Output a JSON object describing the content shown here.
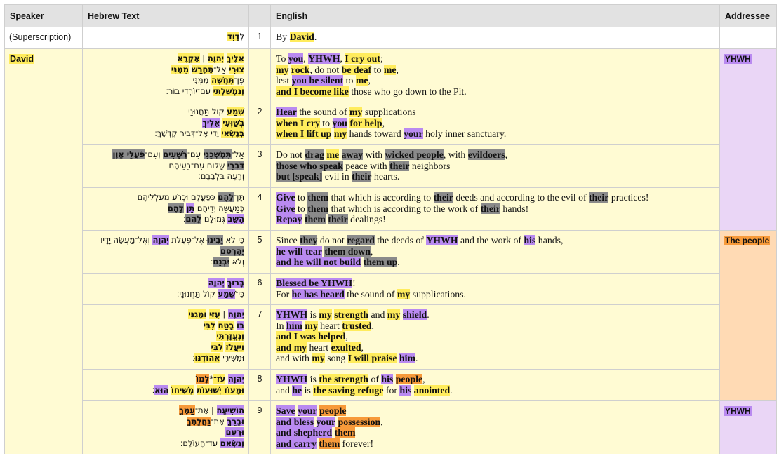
{
  "headers": {
    "speaker": "Speaker",
    "hebrew": "Hebrew Text",
    "number": "",
    "english": "English",
    "addressee": "Addressee"
  },
  "colors": {
    "yellow": "#ffec5c",
    "purple": "#b98af0",
    "gray": "#8a8a8a",
    "orange": "#f79a3a",
    "cream_bg": "#fffbd3",
    "lavender_bg": "#ead6f6",
    "peach_bg": "#ffdab4"
  },
  "speakers": {
    "superscription": "(Superscription)",
    "david": "David"
  },
  "addressees": {
    "yhwh_1": "YHWH",
    "people": "The people",
    "yhwh_2": "YHWH"
  },
  "rows": [
    {
      "num": "1",
      "hebrew": [
        [
          [
            "לְ",
            ""
          ],
          [
            "דָוִד",
            "y"
          ]
        ]
      ],
      "english": [
        [
          [
            "By ",
            ""
          ],
          [
            "David",
            "y"
          ],
          [
            ".",
            ""
          ]
        ]
      ]
    },
    {
      "num": "",
      "hebrew": [
        [
          [
            "אֵלֶיךָ",
            "y"
          ],
          [
            " ",
            ""
          ],
          [
            "יְהוָה",
            "y"
          ],
          [
            " | ",
            ""
          ],
          [
            "אֶקְרָא",
            "y"
          ]
        ],
        [
          [
            "צוּרִי",
            "y"
          ],
          [
            " אַל־",
            ""
          ],
          [
            "תֶּחֱרַשׁ",
            "y"
          ],
          [
            " ",
            ""
          ],
          [
            "מִמֶּנִּי",
            "y"
          ]
        ],
        [
          [
            "פֶּן־",
            ""
          ],
          [
            "תֶּחֱשֶׁה",
            "y"
          ],
          [
            " מִמֶּנִּי",
            ""
          ]
        ],
        [
          [
            "וְנִמְשַׁלְתִּי",
            "y"
          ],
          [
            " עִם־יוֹרְדֵי בוֹר׃",
            ""
          ]
        ]
      ],
      "english": [
        [
          [
            "To ",
            ""
          ],
          [
            "you",
            "p"
          ],
          [
            ", ",
            ""
          ],
          [
            "YHWH",
            "p"
          ],
          [
            ", ",
            ""
          ],
          [
            "I cry out",
            "yb"
          ],
          [
            ";",
            ""
          ]
        ],
        [
          [
            "my",
            "yb"
          ],
          [
            " ",
            ""
          ],
          [
            "rock",
            "yb"
          ],
          [
            ", do not ",
            ""
          ],
          [
            "be deaf",
            "yb"
          ],
          [
            " to ",
            ""
          ],
          [
            "me",
            "yb"
          ],
          [
            ",",
            ""
          ]
        ],
        [
          [
            "lest ",
            ""
          ],
          [
            "you be silent",
            "pb"
          ],
          [
            " to ",
            ""
          ],
          [
            "me",
            "yb"
          ],
          [
            ",",
            ""
          ]
        ],
        [
          [
            "and I become like",
            "yb"
          ],
          [
            " those who go down to the Pit.",
            ""
          ]
        ]
      ]
    },
    {
      "num": "2",
      "hebrew": [
        [
          [
            "שְׁמַע",
            "y"
          ],
          [
            " קוֹל תַּחֲנוּנַי",
            ""
          ]
        ],
        [
          [
            "בְּשַׁוְּעִי",
            "y"
          ],
          [
            " ",
            ""
          ],
          [
            "אֵלֶיךָ",
            "p"
          ]
        ],
        [
          [
            "בְּנָשְׂאִי",
            "y"
          ],
          [
            " יָדַי אֶל־דְּבִיר קָדְשֶׁךָ׃",
            ""
          ]
        ]
      ],
      "english": [
        [
          [
            "Hear",
            "p"
          ],
          [
            " the sound of ",
            ""
          ],
          [
            "my",
            "y"
          ],
          [
            " supplications",
            ""
          ]
        ],
        [
          [
            "when I cry",
            "yb"
          ],
          [
            " to ",
            ""
          ],
          [
            "you",
            "p"
          ],
          [
            " ",
            ""
          ],
          [
            "for help",
            "yb"
          ],
          [
            ",",
            ""
          ]
        ],
        [
          [
            "when I lift up",
            "yb"
          ],
          [
            " ",
            ""
          ],
          [
            "my",
            "y"
          ],
          [
            " hands toward ",
            ""
          ],
          [
            "your",
            "p"
          ],
          [
            " holy inner sanctuary.",
            ""
          ]
        ]
      ]
    },
    {
      "num": "3",
      "hebrew": [
        [
          [
            "אַל־",
            ""
          ],
          [
            "תִּמְשְׁכֵנִי",
            "g"
          ],
          [
            " עִם־",
            ""
          ],
          [
            "רְשָׁעִים",
            "g"
          ],
          [
            " וְעִם־",
            ""
          ],
          [
            "פֹּעֲלֵי אָוֶן",
            "g"
          ]
        ],
        [
          [
            "דֹּבְרֵי",
            "g"
          ],
          [
            " שָׁלוֹם עִם־רֵעֵיהֶם",
            ""
          ]
        ],
        [
          [
            "וְרָעָה בִּלְבָבָם׃",
            ""
          ]
        ]
      ],
      "english": [
        [
          [
            "Do not ",
            ""
          ],
          [
            "drag",
            "g"
          ],
          [
            " ",
            ""
          ],
          [
            "me",
            "y"
          ],
          [
            " ",
            ""
          ],
          [
            "away",
            "g"
          ],
          [
            " with ",
            ""
          ],
          [
            "wicked people",
            "g"
          ],
          [
            ", with ",
            ""
          ],
          [
            "evildoers",
            "g"
          ],
          [
            ",",
            ""
          ]
        ],
        [
          [
            "those who speak",
            "g"
          ],
          [
            " peace with ",
            ""
          ],
          [
            "their",
            "g"
          ],
          [
            " neighbors",
            ""
          ]
        ],
        [
          [
            "but [speak]",
            "gb"
          ],
          [
            " evil in ",
            ""
          ],
          [
            "their",
            "g"
          ],
          [
            " hearts.",
            ""
          ]
        ]
      ]
    },
    {
      "num": "4",
      "hebrew": [
        [
          [
            "תֶּן־",
            ""
          ],
          [
            "לָהֶם",
            "g"
          ],
          [
            " כְּפָעֳלָם וּכְרֹעַ מַעַלְלֵיהֶם",
            ""
          ]
        ],
        [
          [
            "כְּמַעֲשֵׂה יְדֵיהֶם ",
            ""
          ],
          [
            "תֵּן",
            "p"
          ],
          [
            " ",
            ""
          ],
          [
            "לָהֶם",
            "g"
          ]
        ],
        [
          [
            "הָשֵׁב",
            "p"
          ],
          [
            " גְּמוּלָם ",
            ""
          ],
          [
            "לָהֶם",
            "g"
          ],
          [
            "׃",
            ""
          ]
        ]
      ],
      "english": [
        [
          [
            "Give",
            "p"
          ],
          [
            " to ",
            ""
          ],
          [
            "them",
            "g"
          ],
          [
            " that which is according to ",
            ""
          ],
          [
            "their",
            "g"
          ],
          [
            " deeds and according to the evil of ",
            ""
          ],
          [
            "their",
            "g"
          ],
          [
            " practices!",
            ""
          ]
        ],
        [
          [
            "Give",
            "p"
          ],
          [
            " to ",
            ""
          ],
          [
            "them",
            "g"
          ],
          [
            " that which is according to the work of ",
            ""
          ],
          [
            "their",
            "g"
          ],
          [
            " hands!",
            ""
          ]
        ],
        [
          [
            "Repay",
            "pb"
          ],
          [
            " ",
            ""
          ],
          [
            "them",
            "g"
          ],
          [
            " ",
            ""
          ],
          [
            "their",
            "g"
          ],
          [
            " dealings!",
            ""
          ]
        ]
      ]
    },
    {
      "num": "5",
      "hebrew": [
        [
          [
            "כִּי לֹא ",
            ""
          ],
          [
            "יָבִינוּ",
            "g"
          ],
          [
            " אֶל־פְּעֻלֹּת ",
            ""
          ],
          [
            "יְהוָה",
            "p"
          ],
          [
            " וְאֶל־מַעֲשֵׂה יָדָיו",
            ""
          ]
        ],
        [
          [
            "יֶהֶרְסֵם",
            "g"
          ]
        ],
        [
          [
            "וְלֹא ",
            ""
          ],
          [
            "יִבְנֵם",
            "g"
          ],
          [
            "׃",
            ""
          ]
        ]
      ],
      "english": [
        [
          [
            "Since ",
            ""
          ],
          [
            "they",
            "g"
          ],
          [
            " do not ",
            ""
          ],
          [
            "regard",
            "g"
          ],
          [
            " the deeds of ",
            ""
          ],
          [
            "YHWH",
            "p"
          ],
          [
            " and the work of ",
            ""
          ],
          [
            "his",
            "p"
          ],
          [
            " hands,",
            ""
          ]
        ],
        [
          [
            "he will tear",
            "pb"
          ],
          [
            " ",
            ""
          ],
          [
            "them down",
            "gb"
          ],
          [
            ",",
            ""
          ]
        ],
        [
          [
            "and he will not build",
            "pb"
          ],
          [
            " ",
            ""
          ],
          [
            "them up",
            "gb"
          ],
          [
            ".",
            ""
          ]
        ]
      ]
    },
    {
      "num": "6",
      "hebrew": [
        [
          [
            "בָּרוּךְ",
            "p"
          ],
          [
            " ",
            ""
          ],
          [
            "יְהוָה",
            "p"
          ]
        ],
        [
          [
            "כִּי־",
            ""
          ],
          [
            "שָׁמַע",
            "p"
          ],
          [
            " קוֹל תַּחֲנוּנָי׃",
            ""
          ]
        ]
      ],
      "english": [
        [
          [
            "Blessed be YHWH",
            "pb"
          ],
          [
            "!",
            ""
          ]
        ],
        [
          [
            "For ",
            ""
          ],
          [
            "he has heard",
            "pb"
          ],
          [
            " the sound of ",
            ""
          ],
          [
            "my",
            "y"
          ],
          [
            " supplications.",
            ""
          ]
        ]
      ]
    },
    {
      "num": "7",
      "hebrew": [
        [
          [
            "יְהוָה",
            "p"
          ],
          [
            " | ",
            ""
          ],
          [
            "עֻזִּי",
            "y"
          ],
          [
            " ",
            ""
          ],
          [
            "וּמָגִנִּי",
            "y"
          ]
        ],
        [
          [
            "בּוֹ",
            "p"
          ],
          [
            " ",
            ""
          ],
          [
            "בָטַח",
            "y"
          ],
          [
            " ",
            ""
          ],
          [
            "לִבִּי",
            "y"
          ]
        ],
        [
          [
            "וְנֶעֱזָרְתִּי",
            "y"
          ]
        ],
        [
          [
            "וַיַּעֲלֹז",
            "y"
          ],
          [
            " ",
            ""
          ],
          [
            "לִבִּי",
            "y"
          ]
        ],
        [
          [
            "וּמִשִּׁירִי ",
            ""
          ],
          [
            "אֲהוֹדֶנּוּ",
            "y"
          ],
          [
            "׃",
            ""
          ]
        ]
      ],
      "english": [
        [
          [
            "YHWH",
            "p"
          ],
          [
            " is ",
            ""
          ],
          [
            "my",
            "y"
          ],
          [
            " ",
            ""
          ],
          [
            "strength",
            "y"
          ],
          [
            " and ",
            ""
          ],
          [
            "my",
            "y"
          ],
          [
            " ",
            ""
          ],
          [
            "shield",
            "p"
          ],
          [
            ".",
            ""
          ]
        ],
        [
          [
            "In ",
            ""
          ],
          [
            "him",
            "p"
          ],
          [
            " ",
            ""
          ],
          [
            "my",
            "y"
          ],
          [
            " heart ",
            ""
          ],
          [
            "trusted",
            "y"
          ],
          [
            ",",
            ""
          ]
        ],
        [
          [
            "and I was helped",
            "yb"
          ],
          [
            ",",
            ""
          ]
        ],
        [
          [
            "and my",
            "yb"
          ],
          [
            " heart ",
            ""
          ],
          [
            "exulted",
            "y"
          ],
          [
            ",",
            ""
          ]
        ],
        [
          [
            "and with ",
            ""
          ],
          [
            "my",
            "y"
          ],
          [
            " song ",
            ""
          ],
          [
            "I will praise",
            "yb"
          ],
          [
            " ",
            ""
          ],
          [
            "him",
            "p"
          ],
          [
            ".",
            ""
          ]
        ]
      ]
    },
    {
      "num": "8",
      "hebrew": [
        [
          [
            "יְהוָה",
            "p"
          ],
          [
            " ",
            ""
          ],
          [
            "עֹז־",
            "y"
          ],
          [
            "*",
            ""
          ],
          [
            "לָמוֹ",
            "o"
          ]
        ],
        [
          [
            "וּמָעוֹז יְשׁוּעוֹת",
            "y"
          ],
          [
            " ",
            ""
          ],
          [
            "מְשִׁיחוֹ",
            "y"
          ],
          [
            " ",
            ""
          ],
          [
            "הוּא",
            "p"
          ],
          [
            "׃",
            ""
          ]
        ]
      ],
      "english": [
        [
          [
            "YHWH",
            "p"
          ],
          [
            " is ",
            ""
          ],
          [
            "the strength",
            "yb"
          ],
          [
            " of ",
            ""
          ],
          [
            "his",
            "p"
          ],
          [
            " ",
            ""
          ],
          [
            "people",
            "o"
          ],
          [
            ",",
            ""
          ]
        ],
        [
          [
            "and ",
            ""
          ],
          [
            "he",
            "p"
          ],
          [
            " is ",
            ""
          ],
          [
            "the saving refuge",
            "yb"
          ],
          [
            " for ",
            ""
          ],
          [
            "his",
            "p"
          ],
          [
            " ",
            ""
          ],
          [
            "anointed",
            "y"
          ],
          [
            ".",
            ""
          ]
        ]
      ]
    },
    {
      "num": "9",
      "hebrew": [
        [
          [
            "הוֹשִׁיעָה",
            "p"
          ],
          [
            " | אֶת־",
            ""
          ],
          [
            "עַמֶּךָ",
            "o"
          ]
        ],
        [
          [
            "וּבָרֵךְ",
            "p"
          ],
          [
            " אֶת־",
            ""
          ],
          [
            "נַחֲלָתֶךָ",
            "o"
          ]
        ],
        [
          [
            "וּרְעֵם",
            "p"
          ]
        ],
        [
          [
            "וְנַשְּׂאֵם",
            "p"
          ],
          [
            " עַד־הָעוֹלָם׃",
            ""
          ]
        ]
      ],
      "english": [
        [
          [
            "Save",
            "pb"
          ],
          [
            " ",
            ""
          ],
          [
            "your",
            "p"
          ],
          [
            " ",
            ""
          ],
          [
            "people",
            "o"
          ]
        ],
        [
          [
            "and bless",
            "pb"
          ],
          [
            " ",
            ""
          ],
          [
            "your",
            "p"
          ],
          [
            " ",
            ""
          ],
          [
            "possession",
            "o"
          ],
          [
            ",",
            ""
          ]
        ],
        [
          [
            "and shepherd",
            "pb"
          ],
          [
            " ",
            ""
          ],
          [
            "them",
            "o"
          ]
        ],
        [
          [
            "and carry",
            "pb"
          ],
          [
            " ",
            ""
          ],
          [
            "them",
            "o"
          ],
          [
            " forever!",
            ""
          ]
        ]
      ]
    }
  ]
}
